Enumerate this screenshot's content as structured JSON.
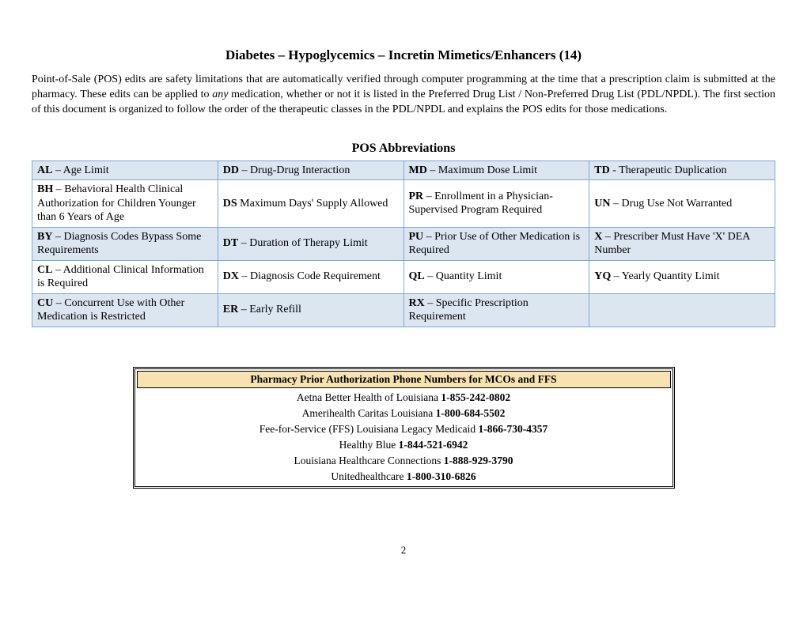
{
  "title": "Diabetes – Hypoglycemics – Incretin Mimetics/Enhancers (14)",
  "intro_pre": "Point-of-Sale (POS) edits are safety limitations that are automatically verified through computer programming at the time that a prescription claim is submitted at the pharmacy. These edits can be applied to ",
  "intro_em": "any",
  "intro_post": " medication, whether or not it is listed in the Preferred Drug List / Non-Preferred Drug List (PDL/NPDL). The first section of this document is organized to follow the order of the therapeutic classes in the PDL/NPDL and explains the POS edits for those medications.",
  "abbrev_title": "POS Abbreviations",
  "abbrev_table": {
    "colors": {
      "shaded_bg": "#dbe6f1",
      "border": "#7ea6d6"
    },
    "rows": [
      {
        "shaded": true,
        "cells": [
          {
            "code": "AL",
            "sep": " – ",
            "desc": "Age Limit"
          },
          {
            "code": "DD",
            "sep": " – ",
            "desc": "Drug-Drug Interaction"
          },
          {
            "code": "MD",
            "sep": " – ",
            "desc": "Maximum Dose Limit"
          },
          {
            "code": "TD",
            "sep": " - ",
            "desc": "Therapeutic Duplication"
          }
        ]
      },
      {
        "shaded": false,
        "cells": [
          {
            "code": "BH",
            "sep": " – ",
            "desc": "Behavioral Health Clinical Authorization for Children Younger than 6 Years of Age"
          },
          {
            "code": "DS",
            "sep": " ",
            "desc": "Maximum Days' Supply Allowed"
          },
          {
            "code": "PR",
            "sep": " – ",
            "desc": "Enrollment in a Physician-Supervised Program Required"
          },
          {
            "code": "UN",
            "sep": " – ",
            "desc": "Drug Use Not Warranted"
          }
        ]
      },
      {
        "shaded": true,
        "cells": [
          {
            "code": "BY",
            "sep": " – ",
            "desc": "Diagnosis Codes Bypass Some Requirements"
          },
          {
            "code": "DT",
            "sep": " – ",
            "desc": "Duration of Therapy Limit"
          },
          {
            "code": "PU",
            "sep": " – ",
            "desc": "Prior Use of Other Medication is Required"
          },
          {
            "code": "X",
            "sep": " – ",
            "desc": "Prescriber Must Have 'X' DEA Number"
          }
        ]
      },
      {
        "shaded": false,
        "cells": [
          {
            "code": "CL",
            "sep": " – ",
            "desc": "Additional Clinical Information is Required"
          },
          {
            "code": "DX",
            "sep": " – ",
            "desc": "Diagnosis Code Requirement"
          },
          {
            "code": "QL",
            "sep": " – ",
            "desc": "Quantity Limit"
          },
          {
            "code": "YQ",
            "sep": " – ",
            "desc": "Yearly Quantity Limit"
          }
        ]
      },
      {
        "shaded": true,
        "cells": [
          {
            "code": "CU",
            "sep": " – ",
            "desc": "Concurrent Use with Other Medication is Restricted"
          },
          {
            "code": "ER",
            "sep": " – ",
            "desc": "Early Refill"
          },
          {
            "code": "RX",
            "sep": " – ",
            "desc": "Specific Prescription Requirement"
          },
          {
            "code": "",
            "sep": "",
            "desc": ""
          }
        ]
      }
    ]
  },
  "phone_box": {
    "header": "Pharmacy Prior Authorization Phone Numbers for MCOs and FFS",
    "header_bg": "#f8e3b0",
    "rows": [
      {
        "name": "Aetna Better Health of Louisiana ",
        "number": "1-855-242-0802"
      },
      {
        "name": "Amerihealth Caritas Louisiana ",
        "number": "1-800-684-5502"
      },
      {
        "name": "Fee-for-Service (FFS) Louisiana Legacy Medicaid ",
        "number": "1-866-730-4357"
      },
      {
        "name": "Healthy Blue ",
        "number": "1-844-521-6942"
      },
      {
        "name": "Louisiana Healthcare Connections ",
        "number": "1-888-929-3790"
      },
      {
        "name": "Unitedhealthcare ",
        "number": "1-800-310-6826"
      }
    ]
  },
  "page_number": "2"
}
